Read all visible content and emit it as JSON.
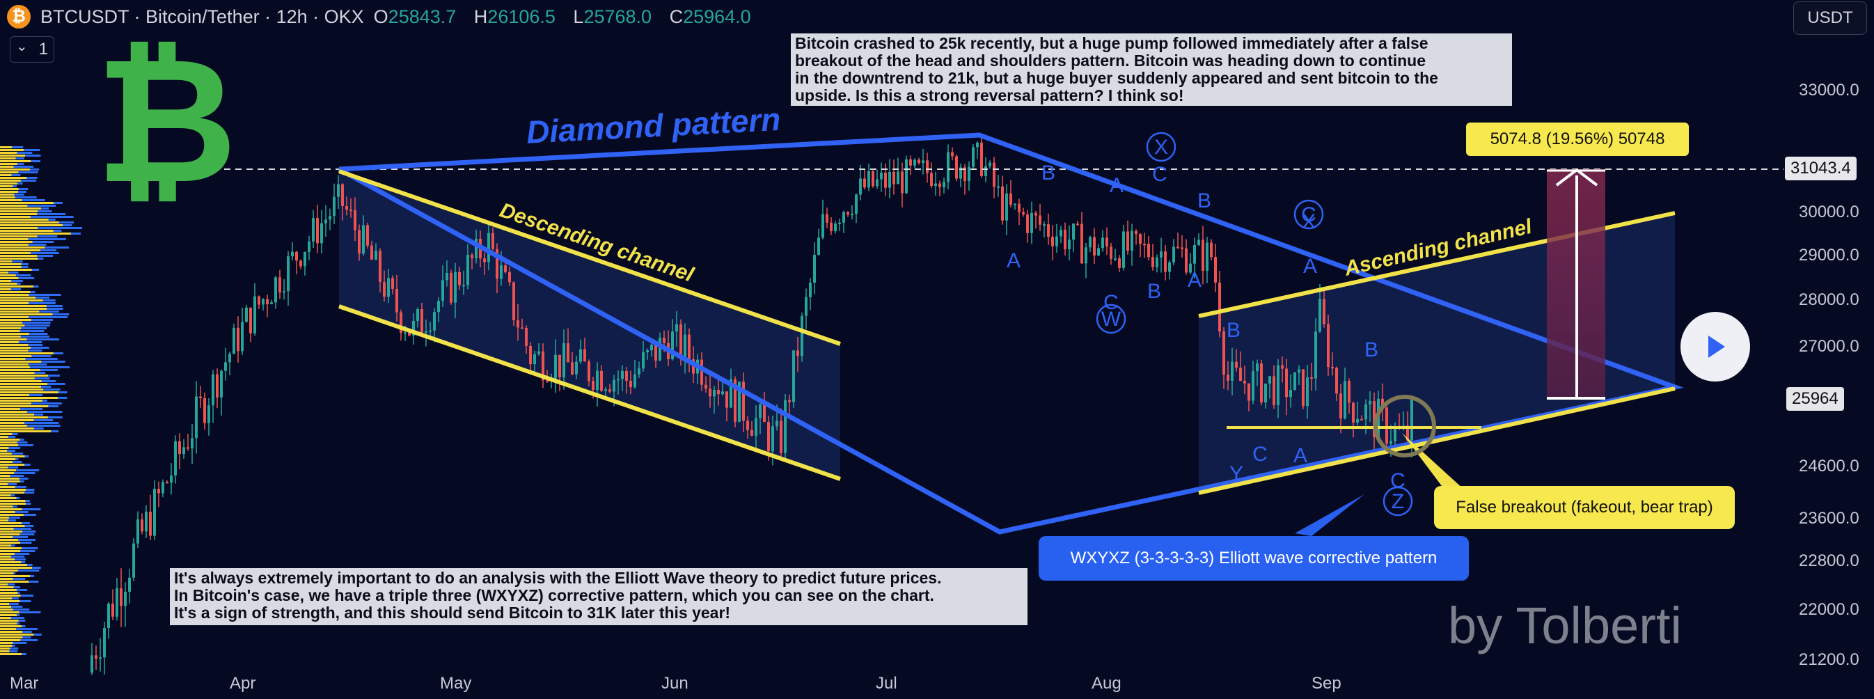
{
  "header": {
    "symbol": "BTCUSDT · Bitcoin/Tether · 12h · OKX",
    "ohlc": [
      {
        "k": "O",
        "v": "25843.7"
      },
      {
        "k": "H",
        "v": "26106.5"
      },
      {
        "k": "L",
        "v": "25768.0"
      },
      {
        "k": "C",
        "v": "25964.0"
      }
    ],
    "logo_glyph": "₿",
    "indicator_count": "1",
    "chevron": "⌄",
    "currency": "USDT"
  },
  "notes": {
    "top": "Bitcoin crashed to 25k recently, but a huge pump followed immediately after a false\nbreakout of the head and shoulders pattern. Bitcoin was heading down to continue\nin the downtrend to 21k, but a huge buyer suddenly appeared and sent bitcoin to the\nupside. Is this a strong reversal pattern? I think so!",
    "bottom": "It's always extremely important to do an analysis with the Elliott Wave theory to predict future prices.\nIn Bitcoin's case, we have a triple three (WXYXZ) corrective pattern, which you can see on the chart.\nIt's a sign of strength, and this should send Bitcoin to 31K later this year!"
  },
  "chart_data": {
    "type": "candlestick",
    "symbol": "BTCUSDT",
    "interval": "12h",
    "exchange": "OKX",
    "x_ticks": [
      "Mar",
      "Apr",
      "May",
      "Jun",
      "Jul",
      "Aug",
      "Sep"
    ],
    "y_ticks": [
      33000,
      30000,
      29000,
      28000,
      27000,
      24600,
      23600,
      22800,
      22000,
      21200
    ],
    "last_price": 25964.0,
    "dashed_level": 31043.4,
    "close_path": [
      [
        "Mar",
        21000
      ],
      [
        "Apr",
        27500
      ],
      [
        "Apr 12",
        30300
      ],
      [
        "Apr 20",
        28000
      ],
      [
        "Apr 26",
        27300
      ],
      [
        "May 5",
        29300
      ],
      [
        "May 12",
        26800
      ],
      [
        "May 25",
        26300
      ],
      [
        "Jun 1",
        27200
      ],
      [
        "Jun 15",
        25000
      ],
      [
        "Jun 21",
        29700
      ],
      [
        "Jul 1",
        30600
      ],
      [
        "Jul 14",
        31300
      ],
      [
        "Jul 20",
        30100
      ],
      [
        "Aug 1",
        29200
      ],
      [
        "Aug 16",
        29000
      ],
      [
        "Aug 17",
        26300
      ],
      [
        "Aug 28",
        26100
      ],
      [
        "Aug 29",
        27900
      ],
      [
        "Sep 1",
        26000
      ],
      [
        "Sep 11",
        25100
      ],
      [
        "Sep 14",
        26000
      ]
    ],
    "annotations": {
      "diamond": "Diamond pattern",
      "descending": "Descending channel",
      "ascending": "Ascending channel",
      "measure": "5074.8 (19.56%) 50748",
      "false_breakout": "False breakout (fakeout, bear trap)",
      "wxyxz": "WXYXZ (3-3-3-3-3) Elliott wave corrective pattern",
      "waves": [
        "B",
        "A",
        "C",
        "X",
        "B",
        "A",
        "C",
        "W",
        "B",
        "A",
        "X",
        "C",
        "A",
        "B",
        "C",
        "Y",
        "A",
        "B",
        "C",
        "Z"
      ]
    }
  },
  "watermark": "by Tolberti",
  "colors": {
    "bg": "#050921",
    "up": "#26a69a",
    "down": "#ef5350",
    "blue": "#2f62f5",
    "yellow": "#f2e24a"
  }
}
